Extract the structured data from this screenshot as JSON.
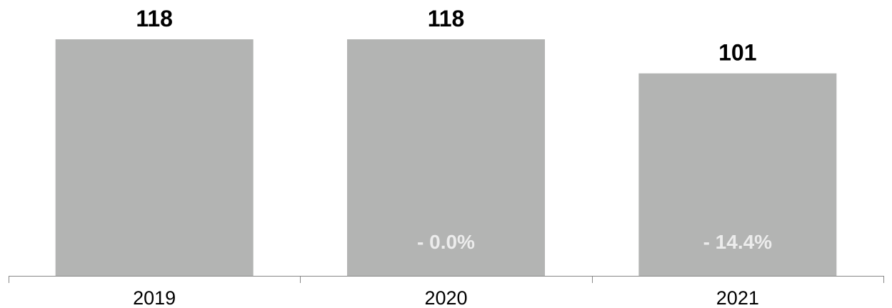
{
  "chart_data": {
    "type": "bar",
    "categories": [
      "2019",
      "2020",
      "2021"
    ],
    "values": [
      118,
      118,
      101
    ],
    "value_labels": [
      "118",
      "118",
      "101"
    ],
    "change_labels": [
      "",
      "- 0.0%",
      "- 14.4%"
    ],
    "title": "",
    "xlabel": "",
    "ylabel": "",
    "ylim": [
      0,
      118
    ],
    "grid": false,
    "legend": "none",
    "colors": {
      "bar": "#b3b4b3",
      "axis": "#888888",
      "value_text": "#000000",
      "change_text": "#ececec"
    }
  }
}
